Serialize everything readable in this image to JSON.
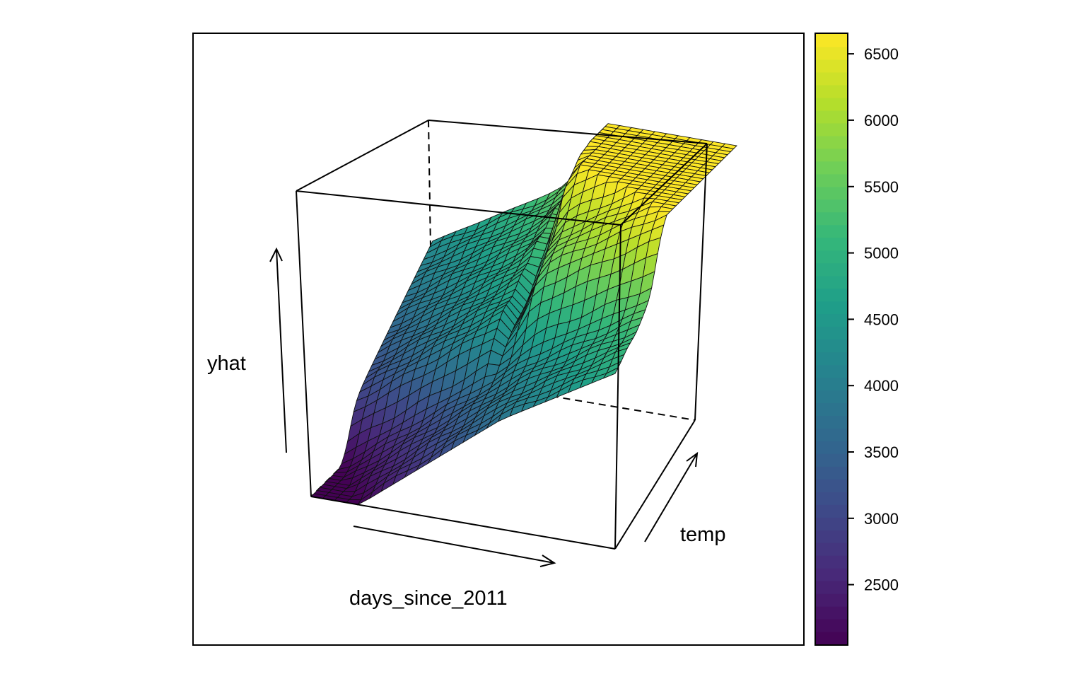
{
  "chart_data": {
    "type": "surface",
    "xlabel": "days_since_2011",
    "ylabel": "temp",
    "zlabel": "yhat",
    "colorbar": {
      "ticks": [
        2500,
        3000,
        3500,
        4000,
        4500,
        5000,
        5500,
        6000,
        6500
      ],
      "tick_labels": [
        "2500",
        "3000",
        "3500",
        "4000",
        "4500",
        "5000",
        "5500",
        "6000",
        "6500"
      ],
      "range": [
        2050,
        6650
      ],
      "colormap": "viridis"
    },
    "z_range": [
      2050,
      6650
    ],
    "grid": false,
    "legend": "right"
  }
}
